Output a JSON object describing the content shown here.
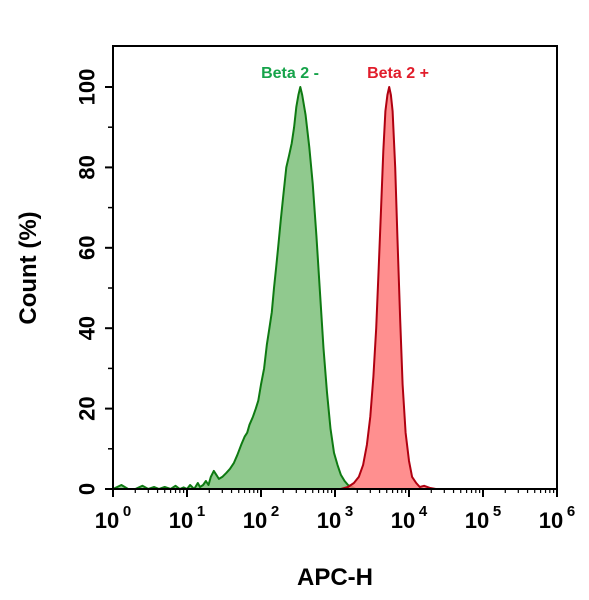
{
  "chart_data": {
    "type": "area",
    "xlabel": "APC-H",
    "ylabel": "Count  (%)",
    "x_scale": "log",
    "xlim": [
      1,
      1000000
    ],
    "ylim": [
      0,
      110
    ],
    "x_ticks": [
      {
        "base": "10",
        "exp": "0",
        "value": 1
      },
      {
        "base": "10",
        "exp": "1",
        "value": 10
      },
      {
        "base": "10",
        "exp": "2",
        "value": 100
      },
      {
        "base": "10",
        "exp": "3",
        "value": 1000
      },
      {
        "base": "10",
        "exp": "4",
        "value": 10000
      },
      {
        "base": "10",
        "exp": "5",
        "value": 100000
      },
      {
        "base": "10",
        "exp": "6",
        "value": 1000000
      }
    ],
    "y_ticks": [
      "0",
      "20",
      "40",
      "60",
      "80",
      "100"
    ],
    "grid": false,
    "series": [
      {
        "name": "Beta 2 -",
        "fill": "#7dbf7a",
        "stroke": "#0e7a12",
        "label_color": "#16a34a",
        "points": [
          [
            1.0,
            0
          ],
          [
            1.3,
            1
          ],
          [
            1.6,
            0
          ],
          [
            2.0,
            0
          ],
          [
            2.5,
            0.8
          ],
          [
            3.0,
            0
          ],
          [
            3.6,
            0.5
          ],
          [
            4.2,
            0
          ],
          [
            5.0,
            0.5
          ],
          [
            6.0,
            0
          ],
          [
            7.0,
            0.8
          ],
          [
            8.0,
            0
          ],
          [
            9.0,
            0.4
          ],
          [
            10.0,
            0
          ],
          [
            11.0,
            1
          ],
          [
            12.5,
            0
          ],
          [
            14.0,
            1.5
          ],
          [
            15.0,
            0.5
          ],
          [
            16.5,
            1
          ],
          [
            18.0,
            2
          ],
          [
            19.5,
            1
          ],
          [
            21.0,
            3
          ],
          [
            23.0,
            4.5
          ],
          [
            25.0,
            3.5
          ],
          [
            27.0,
            2.5
          ],
          [
            30.0,
            3
          ],
          [
            34.0,
            4
          ],
          [
            38.0,
            5
          ],
          [
            43.0,
            6.5
          ],
          [
            48.0,
            8.5
          ],
          [
            54.0,
            11
          ],
          [
            60.0,
            13
          ],
          [
            65.0,
            14
          ],
          [
            70.0,
            16
          ],
          [
            78.0,
            18
          ],
          [
            85.0,
            20
          ],
          [
            92.0,
            22
          ],
          [
            100.0,
            26
          ],
          [
            110.0,
            30
          ],
          [
            120.0,
            36
          ],
          [
            130.0,
            40
          ],
          [
            140.0,
            44
          ],
          [
            150.0,
            50
          ],
          [
            160.0,
            55
          ],
          [
            170.0,
            60
          ],
          [
            185.0,
            67
          ],
          [
            200.0,
            73
          ],
          [
            220.0,
            80
          ],
          [
            240.0,
            83
          ],
          [
            260.0,
            86
          ],
          [
            280.0,
            90
          ],
          [
            300.0,
            95
          ],
          [
            320.0,
            98
          ],
          [
            340.0,
            100
          ],
          [
            360.0,
            98
          ],
          [
            400.0,
            93
          ],
          [
            450.0,
            85
          ],
          [
            500.0,
            76
          ],
          [
            560.0,
            63
          ],
          [
            630.0,
            48
          ],
          [
            700.0,
            35
          ],
          [
            780.0,
            24
          ],
          [
            870.0,
            15
          ],
          [
            970.0,
            9
          ],
          [
            1080.0,
            6
          ],
          [
            1200.0,
            3.5
          ],
          [
            1350.0,
            2
          ],
          [
            1500.0,
            1
          ],
          [
            1700.0,
            0.5
          ],
          [
            1900.0,
            0
          ]
        ]
      },
      {
        "name": "Beta 2 +",
        "fill": "#ff7b7b",
        "stroke": "#b00010",
        "label_color": "#e11d2b",
        "points": [
          [
            1200.0,
            0
          ],
          [
            1500.0,
            0.5
          ],
          [
            1800.0,
            1.5
          ],
          [
            2100.0,
            3
          ],
          [
            2400.0,
            6
          ],
          [
            2700.0,
            11
          ],
          [
            3000.0,
            18
          ],
          [
            3300.0,
            28
          ],
          [
            3600.0,
            40
          ],
          [
            3900.0,
            55
          ],
          [
            4200.0,
            70
          ],
          [
            4500.0,
            84
          ],
          [
            4800.0,
            94
          ],
          [
            5100.0,
            98
          ],
          [
            5400.0,
            100
          ],
          [
            5700.0,
            98
          ],
          [
            6000.0,
            94
          ],
          [
            6500.0,
            80
          ],
          [
            7000.0,
            62
          ],
          [
            7600.0,
            42
          ],
          [
            8200.0,
            26
          ],
          [
            9000.0,
            14
          ],
          [
            10000.0,
            7
          ],
          [
            11000.0,
            3
          ],
          [
            12500.0,
            1.5
          ],
          [
            14000.0,
            0.5
          ],
          [
            16000.0,
            0.8
          ],
          [
            19000.0,
            0.3
          ],
          [
            23000.0,
            0
          ]
        ]
      }
    ]
  }
}
